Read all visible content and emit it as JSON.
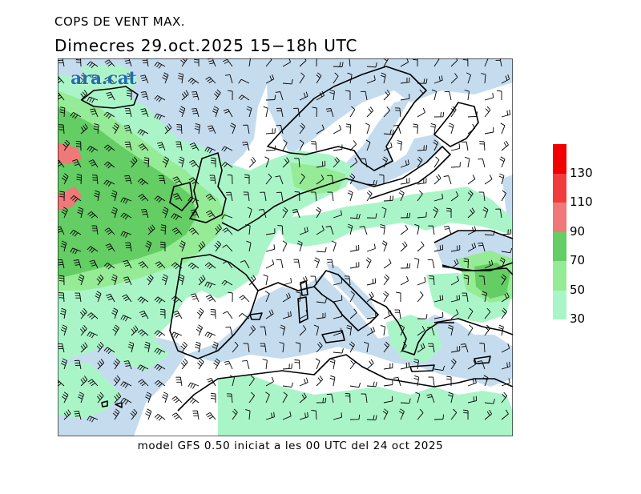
{
  "header": {
    "title": "COPS DE VENT MAX.",
    "subtitle": "Dimecres  29.oct.2025 15−18h UTC"
  },
  "logo": {
    "text": "ara.cat"
  },
  "footer": {
    "text": "model GFS 0.50 iniciat a les 00 UTC del 24 oct 2025"
  },
  "legend": {
    "levels": [
      {
        "label": "30",
        "color": "#aaf5c8"
      },
      {
        "label": "50",
        "color": "#96eb96"
      },
      {
        "label": "70",
        "color": "#64cd64"
      },
      {
        "label": "90",
        "color": "#f07878"
      },
      {
        "label": "110",
        "color": "#f03c3c"
      },
      {
        "label": "130",
        "color": "#f00000"
      }
    ]
  },
  "colors": {
    "sea": "#c5dcef",
    "land": "#ffffff",
    "coast": "#000000"
  }
}
